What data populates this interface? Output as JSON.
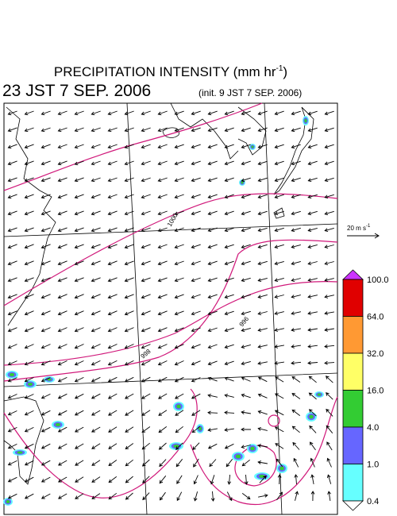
{
  "header": {
    "title": [
      "PRECIPITATION INTENSITY (mm hr",
      "-1",
      ")"
    ],
    "valid_time": "23 JST 7 SEP. 2006",
    "init_time": "(init. 9 JST 7 SEP. 2006)"
  },
  "scale_vector": {
    "label": [
      "20 m s",
      "-1"
    ]
  },
  "contour_labels": [
    "1000",
    "996",
    "998"
  ],
  "colorbar": {
    "levels": [
      "100.0",
      "64.0",
      "32.0",
      "16.0",
      "4.0",
      "1.0",
      "0.4"
    ],
    "colors": [
      "#e00000",
      "#ff9933",
      "#ffff66",
      "#33cc33",
      "#6666ff",
      "#66ffff"
    ],
    "over_color": "#cc33ff",
    "under_color": "#ffffff"
  }
}
